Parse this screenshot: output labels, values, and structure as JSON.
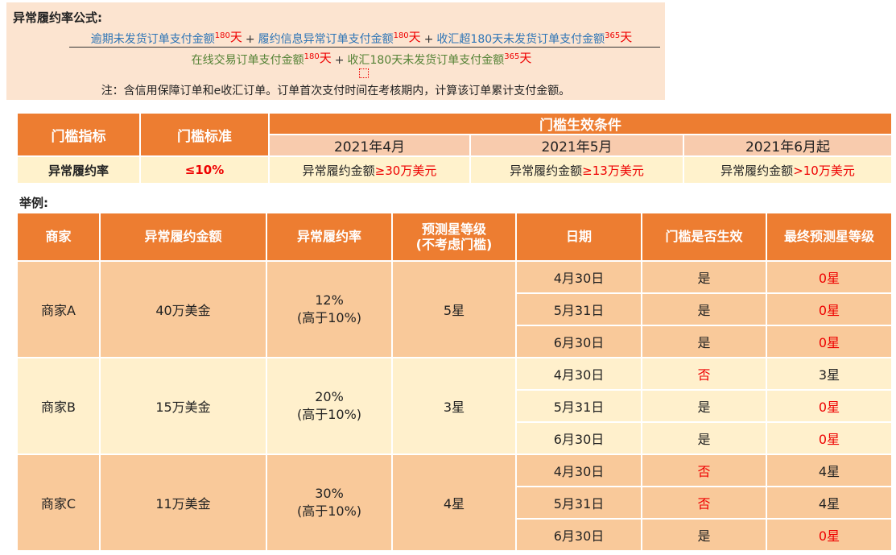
{
  "formula": {
    "title": "异常履约率公式:",
    "numerator": [
      {
        "text": "逾期未发货订单支付金额",
        "sup": "180",
        "unit": "天"
      },
      {
        "text": "履约信息异常订单支付金额",
        "sup": "180",
        "unit": "天"
      },
      {
        "text": "收汇超180天未发货订单支付金额",
        "sup": "365",
        "unit": "天"
      }
    ],
    "denominator": [
      {
        "text": "在线交易订单支付金额",
        "sup": "180",
        "unit": "天"
      },
      {
        "text": "收汇180天未发货订单支付金额",
        "sup": "365",
        "unit": "天"
      }
    ],
    "plus": "+",
    "note": "注：含信用保障订单和e收汇订单。订单首次支付时间在考核期内，计算该订单累计支付金额。"
  },
  "threshold_table": {
    "headers": [
      "门槛指标",
      "门槛标准",
      "门槛生效条件"
    ],
    "periods": [
      "2021年4月",
      "2021年5月",
      "2021年6月起"
    ],
    "row": {
      "indicator": "异常履约率",
      "standard": "≤10%",
      "conditions": [
        {
          "prefix": "异常履约金额",
          "value": "≥30万美元"
        },
        {
          "prefix": "异常履约金额",
          "value": "≥13万美元"
        },
        {
          "prefix": "异常履约金额",
          "value": ">10万美元"
        }
      ]
    }
  },
  "example_label": "举例:",
  "example_table": {
    "headers": [
      "商家",
      "异常履约金额",
      "异常履约率",
      "预测星等级\n(不考虑门槛)",
      "日期",
      "门槛是否生效",
      "最终预测星等级"
    ],
    "merchants": [
      {
        "name": "商家A",
        "amount": "40万美金",
        "rate": "12%",
        "rate_note": "(高于10%)",
        "star": "5星",
        "rows": [
          {
            "date": "4月30日",
            "effective": "是",
            "final": "0星"
          },
          {
            "date": "5月31日",
            "effective": "是",
            "final": "0星"
          },
          {
            "date": "6月30日",
            "effective": "是",
            "final": "0星"
          }
        ]
      },
      {
        "name": "商家B",
        "amount": "15万美金",
        "rate": "20%",
        "rate_note": "(高于10%)",
        "star": "3星",
        "rows": [
          {
            "date": "4月30日",
            "effective": "否",
            "final": "3星"
          },
          {
            "date": "5月31日",
            "effective": "是",
            "final": "0星"
          },
          {
            "date": "6月30日",
            "effective": "是",
            "final": "0星"
          }
        ]
      },
      {
        "name": "商家C",
        "amount": "11万美金",
        "rate": "30%",
        "rate_note": "(高于10%)",
        "star": "4星",
        "rows": [
          {
            "date": "4月30日",
            "effective": "否",
            "final": "4星"
          },
          {
            "date": "5月31日",
            "effective": "否",
            "final": "4星"
          },
          {
            "date": "6月30日",
            "effective": "是",
            "final": "0星"
          }
        ]
      }
    ]
  },
  "colors": {
    "header": "#ED7D31",
    "sub_header": "#F8CBAD",
    "cream": "#FFF2CC",
    "peach": "#F9C99A",
    "highlight": "#E00000"
  }
}
